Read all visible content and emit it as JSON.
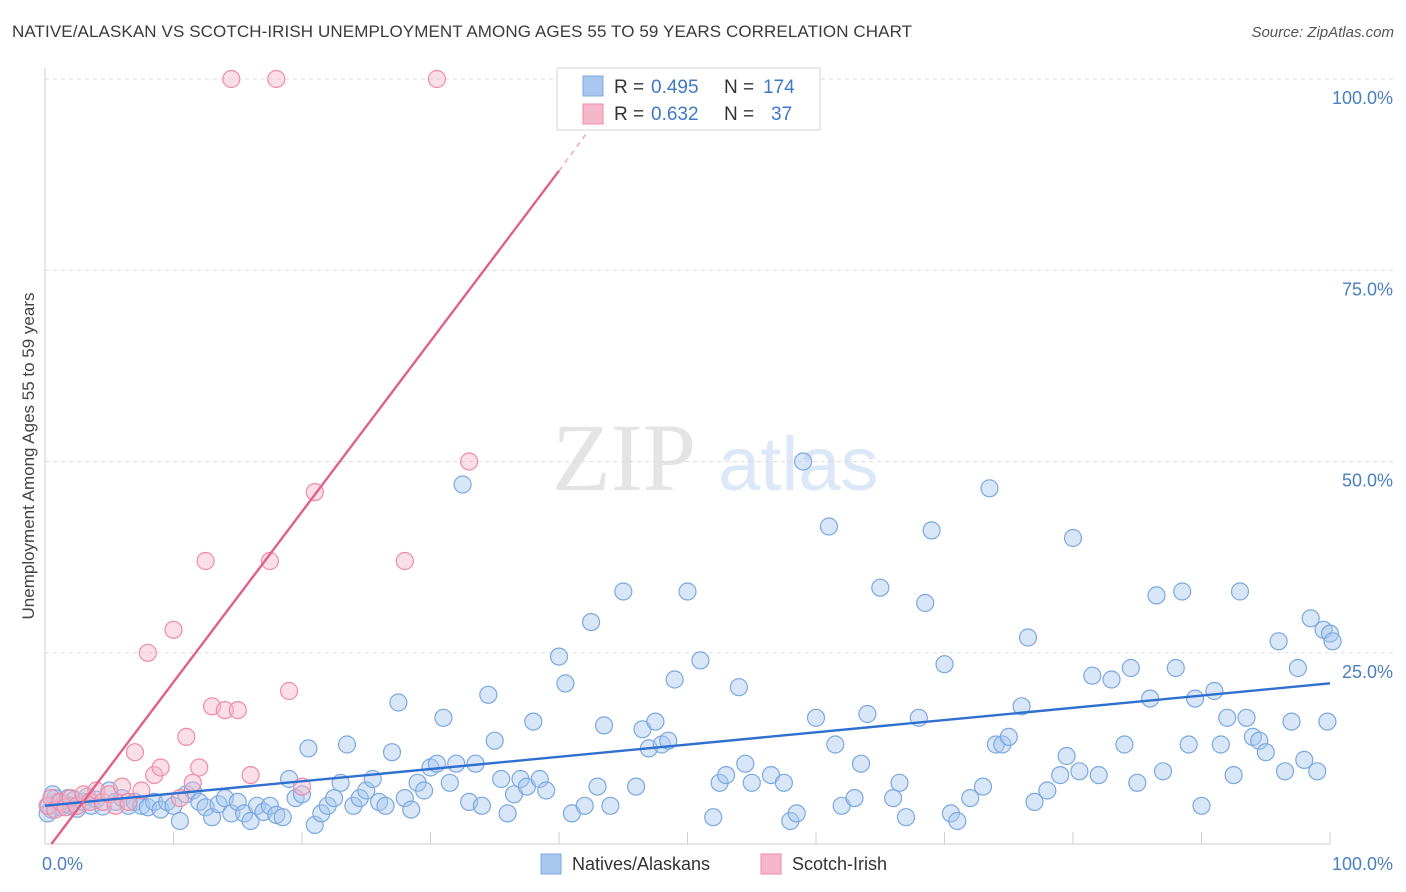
{
  "title": "NATIVE/ALASKAN VS SCOTCH-IRISH UNEMPLOYMENT AMONG AGES 55 TO 59 YEARS CORRELATION CHART",
  "source": "Source: ZipAtlas.com",
  "watermark": {
    "zip": "ZIP",
    "atlas": "atlas"
  },
  "legend": {
    "rows": [
      {
        "r_label": "R = ",
        "r_value": "0.495",
        "n_label": "N = ",
        "n_value": "174",
        "color": "#a9c7ee"
      },
      {
        "r_label": "R = ",
        "r_value": "0.632",
        "n_label": "N = ",
        "n_value": "37",
        "color": "#f5b8ca"
      }
    ]
  },
  "bottom_legend": [
    {
      "label": "Natives/Alaskans",
      "color": "#a9c7ee"
    },
    {
      "label": "Scotch-Irish",
      "color": "#f5b8ca"
    }
  ],
  "chart_data": {
    "type": "scatter",
    "title": "NATIVE/ALASKAN VS SCOTCH-IRISH UNEMPLOYMENT AMONG AGES 55 TO 59 YEARS CORRELATION CHART",
    "xlabel": "",
    "ylabel": "Unemployment Among Ages 55 to 59 years",
    "xlim": [
      0,
      100
    ],
    "ylim": [
      0,
      100
    ],
    "x_tick_labels": [
      "0.0%",
      "100.0%"
    ],
    "y_tick_labels": [
      "25.0%",
      "50.0%",
      "75.0%",
      "100.0%"
    ],
    "y_ticks": [
      25,
      50,
      75,
      100
    ],
    "grid": true,
    "legend_position": "top-center",
    "series": [
      {
        "name": "Natives/Alaskans",
        "color": "#7aa8e0",
        "trend": {
          "x": [
            0,
            100
          ],
          "y": [
            5.0,
            21.0
          ],
          "color": "#2f6fd0"
        },
        "points": [
          [
            0.3,
            5.0
          ],
          [
            0.5,
            4.5
          ],
          [
            0.8,
            6.0
          ],
          [
            1.0,
            5.5
          ],
          [
            1.2,
            4.8
          ],
          [
            1.5,
            5.2
          ],
          [
            1.8,
            6.0
          ],
          [
            2.0,
            5.0
          ],
          [
            2.3,
            5.8
          ],
          [
            2.5,
            4.6
          ],
          [
            3.0,
            5.5
          ],
          [
            3.3,
            6.2
          ],
          [
            3.6,
            5.0
          ],
          [
            4.0,
            5.8
          ],
          [
            4.5,
            4.9
          ],
          [
            5.0,
            7.0
          ],
          [
            5.5,
            5.5
          ],
          [
            6.0,
            6.0
          ],
          [
            6.5,
            5.0
          ],
          [
            7.0,
            5.5
          ],
          [
            7.5,
            5.0
          ],
          [
            8.0,
            4.8
          ],
          [
            8.5,
            5.5
          ],
          [
            9.0,
            4.5
          ],
          [
            9.5,
            5.5
          ],
          [
            10.0,
            5.0
          ],
          [
            10.5,
            3.0
          ],
          [
            11.0,
            6.5
          ],
          [
            11.5,
            7.0
          ],
          [
            12.0,
            5.5
          ],
          [
            12.5,
            4.8
          ],
          [
            13.0,
            3.5
          ],
          [
            13.5,
            5.2
          ],
          [
            14.0,
            6.0
          ],
          [
            14.5,
            4.0
          ],
          [
            15.0,
            5.5
          ],
          [
            15.5,
            4.0
          ],
          [
            16.0,
            3.0
          ],
          [
            16.5,
            5.0
          ],
          [
            17.0,
            4.2
          ],
          [
            17.5,
            5.0
          ],
          [
            18.0,
            3.8
          ],
          [
            18.5,
            3.5
          ],
          [
            19.0,
            8.5
          ],
          [
            19.5,
            6.0
          ],
          [
            20.0,
            6.5
          ],
          [
            20.5,
            12.5
          ],
          [
            21.0,
            2.5
          ],
          [
            21.5,
            4.0
          ],
          [
            22.0,
            5.0
          ],
          [
            22.5,
            6.0
          ],
          [
            23.0,
            8.0
          ],
          [
            23.5,
            13.0
          ],
          [
            24.0,
            5.0
          ],
          [
            24.5,
            6.0
          ],
          [
            25.0,
            7.0
          ],
          [
            25.5,
            8.5
          ],
          [
            26.0,
            5.5
          ],
          [
            26.5,
            5.0
          ],
          [
            27.0,
            12.0
          ],
          [
            27.5,
            18.5
          ],
          [
            28.0,
            6.0
          ],
          [
            28.5,
            4.5
          ],
          [
            29.0,
            8.0
          ],
          [
            29.5,
            7.0
          ],
          [
            30.0,
            10.0
          ],
          [
            30.5,
            10.5
          ],
          [
            31.0,
            16.5
          ],
          [
            31.5,
            8.0
          ],
          [
            32.0,
            10.5
          ],
          [
            32.5,
            47.0
          ],
          [
            33.0,
            5.5
          ],
          [
            33.5,
            10.5
          ],
          [
            34.0,
            5.0
          ],
          [
            34.5,
            19.5
          ],
          [
            35.0,
            13.5
          ],
          [
            35.5,
            8.5
          ],
          [
            36.0,
            4.0
          ],
          [
            36.5,
            6.5
          ],
          [
            37.0,
            8.5
          ],
          [
            37.5,
            7.5
          ],
          [
            38.0,
            16.0
          ],
          [
            38.5,
            8.5
          ],
          [
            39.0,
            7.0
          ],
          [
            40.0,
            24.5
          ],
          [
            40.5,
            21.0
          ],
          [
            41.0,
            4.0
          ],
          [
            42.0,
            5.0
          ],
          [
            42.5,
            29.0
          ],
          [
            43.0,
            7.5
          ],
          [
            43.5,
            15.5
          ],
          [
            44.0,
            5.0
          ],
          [
            45.0,
            33.0
          ],
          [
            46.0,
            7.5
          ],
          [
            46.5,
            15.0
          ],
          [
            47.0,
            12.5
          ],
          [
            47.5,
            16.0
          ],
          [
            48.0,
            13.0
          ],
          [
            48.5,
            13.5
          ],
          [
            49.0,
            21.5
          ],
          [
            50.0,
            33.0
          ],
          [
            51.0,
            24.0
          ],
          [
            52.0,
            3.5
          ],
          [
            52.5,
            8.0
          ],
          [
            53.0,
            9.0
          ],
          [
            54.0,
            20.5
          ],
          [
            54.5,
            10.5
          ],
          [
            55.0,
            8.0
          ],
          [
            56.5,
            9.0
          ],
          [
            57.5,
            8.0
          ],
          [
            58.0,
            3.0
          ],
          [
            58.5,
            4.0
          ],
          [
            59.0,
            50.0
          ],
          [
            60.0,
            16.5
          ],
          [
            61.0,
            41.5
          ],
          [
            61.5,
            13.0
          ],
          [
            62.0,
            5.0
          ],
          [
            63.0,
            6.0
          ],
          [
            63.5,
            10.5
          ],
          [
            64.0,
            17.0
          ],
          [
            65.0,
            33.5
          ],
          [
            66.0,
            6.0
          ],
          [
            66.5,
            8.0
          ],
          [
            67.0,
            3.5
          ],
          [
            68.0,
            16.5
          ],
          [
            68.5,
            31.5
          ],
          [
            69.0,
            41.0
          ],
          [
            70.0,
            23.5
          ],
          [
            70.5,
            4.0
          ],
          [
            71.0,
            3.0
          ],
          [
            72.0,
            6.0
          ],
          [
            73.0,
            7.5
          ],
          [
            73.5,
            46.5
          ],
          [
            74.0,
            13.0
          ],
          [
            74.5,
            13.0
          ],
          [
            75.0,
            14.0
          ],
          [
            76.0,
            18.0
          ],
          [
            76.5,
            27.0
          ],
          [
            77.0,
            5.5
          ],
          [
            78.0,
            7.0
          ],
          [
            79.0,
            9.0
          ],
          [
            79.5,
            11.5
          ],
          [
            80.0,
            40.0
          ],
          [
            80.5,
            9.5
          ],
          [
            81.5,
            22.0
          ],
          [
            82.0,
            9.0
          ],
          [
            83.0,
            21.5
          ],
          [
            84.0,
            13.0
          ],
          [
            84.5,
            23.0
          ],
          [
            85.0,
            8.0
          ],
          [
            86.0,
            19.0
          ],
          [
            86.5,
            32.5
          ],
          [
            87.0,
            9.5
          ],
          [
            88.0,
            23.0
          ],
          [
            88.5,
            33.0
          ],
          [
            89.0,
            13.0
          ],
          [
            89.5,
            19.0
          ],
          [
            90.0,
            5.0
          ],
          [
            91.0,
            20.0
          ],
          [
            91.5,
            13.0
          ],
          [
            92.0,
            16.5
          ],
          [
            92.5,
            9.0
          ],
          [
            93.0,
            33.0
          ],
          [
            93.5,
            16.5
          ],
          [
            94.0,
            14.0
          ],
          [
            94.5,
            13.5
          ],
          [
            95.0,
            12.0
          ],
          [
            96.0,
            26.5
          ],
          [
            96.5,
            9.5
          ],
          [
            97.0,
            16.0
          ],
          [
            97.5,
            23.0
          ],
          [
            98.0,
            11.0
          ],
          [
            98.5,
            29.5
          ],
          [
            99.0,
            9.5
          ],
          [
            99.5,
            28.0
          ],
          [
            100.0,
            27.5
          ],
          [
            100.2,
            26.5
          ],
          [
            99.8,
            16.0
          ],
          [
            0.2,
            4.0
          ],
          [
            0.6,
            6.5
          ]
        ]
      },
      {
        "name": "Scotch-Irish",
        "color": "#f08aa8",
        "trend": {
          "x": [
            0.5,
            40.0
          ],
          "y": [
            0.0,
            88.0
          ],
          "dashed_to": [
            43.5,
            96.0
          ],
          "color": "#e0608a"
        },
        "points": [
          [
            0.2,
            5.0
          ],
          [
            0.5,
            6.0
          ],
          [
            0.8,
            4.5
          ],
          [
            1.2,
            5.5
          ],
          [
            1.6,
            4.8
          ],
          [
            2.0,
            6.0
          ],
          [
            2.5,
            5.0
          ],
          [
            3.0,
            6.5
          ],
          [
            3.5,
            5.5
          ],
          [
            4.0,
            7.0
          ],
          [
            4.5,
            5.5
          ],
          [
            5.0,
            6.5
          ],
          [
            5.5,
            5.0
          ],
          [
            6.0,
            7.5
          ],
          [
            6.5,
            5.5
          ],
          [
            7.0,
            12.0
          ],
          [
            7.5,
            7.0
          ],
          [
            8.0,
            25.0
          ],
          [
            8.5,
            9.0
          ],
          [
            9.0,
            10.0
          ],
          [
            10.0,
            28.0
          ],
          [
            10.5,
            6.0
          ],
          [
            11.0,
            14.0
          ],
          [
            11.5,
            8.0
          ],
          [
            12.0,
            10.0
          ],
          [
            12.5,
            37.0
          ],
          [
            13.0,
            18.0
          ],
          [
            14.0,
            17.5
          ],
          [
            14.5,
            100.0
          ],
          [
            15.0,
            17.5
          ],
          [
            16.0,
            9.0
          ],
          [
            17.5,
            37.0
          ],
          [
            18.0,
            100.0
          ],
          [
            19.0,
            20.0
          ],
          [
            20.0,
            7.5
          ],
          [
            21.0,
            46.0
          ],
          [
            28.0,
            37.0
          ],
          [
            30.5,
            100.0
          ],
          [
            33.0,
            50.0
          ]
        ]
      }
    ]
  }
}
